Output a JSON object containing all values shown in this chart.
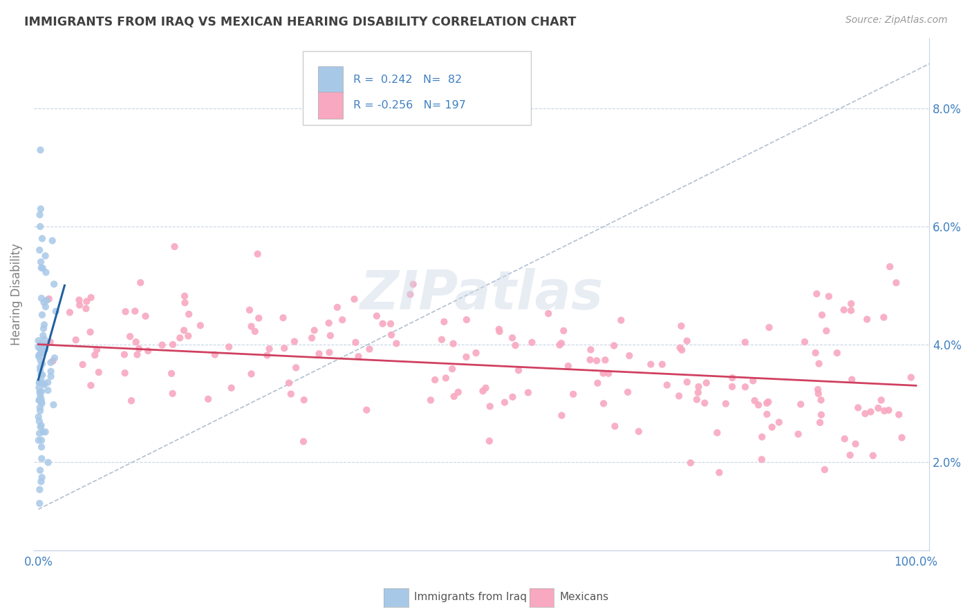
{
  "title": "IMMIGRANTS FROM IRAQ VS MEXICAN HEARING DISABILITY CORRELATION CHART",
  "source": "Source: ZipAtlas.com",
  "ylabel": "Hearing Disability",
  "iraq_R": 0.242,
  "iraq_N": 82,
  "mexican_R": -0.256,
  "mexican_N": 197,
  "iraq_color": "#a8c8e8",
  "iraq_line_color": "#2060a0",
  "mexican_color": "#f8a8c0",
  "mexican_line_color": "#d04060",
  "diagonal_color": "#a8b8cc",
  "watermark": "ZIPatlas",
  "legend_label_iraq": "Immigrants from Iraq",
  "legend_label_mexicans": "Mexicans",
  "background_color": "#ffffff",
  "grid_color": "#c8d4e4",
  "title_color": "#404040",
  "tick_color": "#4080c0",
  "ylim_low": 0.005,
  "ylim_high": 0.092,
  "xlim_low": -0.005,
  "xlim_high": 1.015
}
